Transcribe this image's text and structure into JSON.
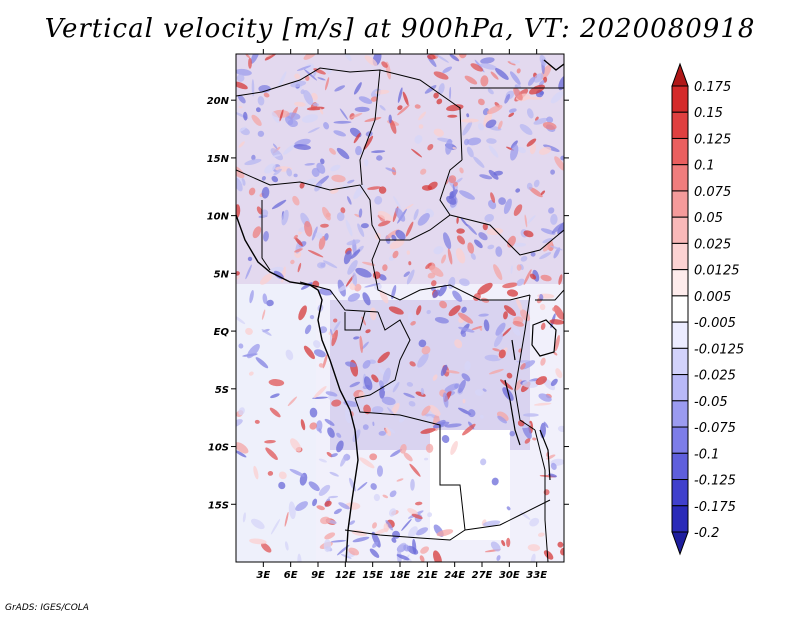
{
  "title": "Vertical velocity [m/s] at 900hPa, VT: 2020080918",
  "footer": "GrADS: IGES/COLA",
  "map": {
    "lon_range": [
      0,
      36
    ],
    "lat_range": [
      -20,
      24
    ],
    "lat_ticks": [
      {
        "value": 20,
        "label": "20N"
      },
      {
        "value": 15,
        "label": "15N"
      },
      {
        "value": 10,
        "label": "10N"
      },
      {
        "value": 5,
        "label": "5N"
      },
      {
        "value": 0,
        "label": "EQ"
      },
      {
        "value": -5,
        "label": "5S"
      },
      {
        "value": -10,
        "label": "10S"
      },
      {
        "value": -15,
        "label": "15S"
      }
    ],
    "lon_ticks": [
      {
        "value": 3,
        "label": "3E"
      },
      {
        "value": 6,
        "label": "6E"
      },
      {
        "value": 9,
        "label": "9E"
      },
      {
        "value": 12,
        "label": "12E"
      },
      {
        "value": 15,
        "label": "15E"
      },
      {
        "value": 18,
        "label": "18E"
      },
      {
        "value": 21,
        "label": "21E"
      },
      {
        "value": 24,
        "label": "24E"
      },
      {
        "value": 27,
        "label": "27E"
      },
      {
        "value": 30,
        "label": "30E"
      },
      {
        "value": 33,
        "label": "33E"
      }
    ]
  },
  "colorbar": {
    "levels": [
      {
        "label": "0.175",
        "color": "#c4161c"
      },
      {
        "label": "0.15",
        "color": "#d42a2a"
      },
      {
        "label": "0.125",
        "color": "#e04040"
      },
      {
        "label": "0.1",
        "color": "#ea5f5f"
      },
      {
        "label": "0.075",
        "color": "#f07d7d"
      },
      {
        "label": "0.05",
        "color": "#f59b9b"
      },
      {
        "label": "0.025",
        "color": "#f9b9b9"
      },
      {
        "label": "0.0125",
        "color": "#fcd3d3"
      },
      {
        "label": "0.005",
        "color": "#feecec"
      },
      {
        "label": "-0.005",
        "color": "#ffffff"
      },
      {
        "label": "-0.0125",
        "color": "#ececff"
      },
      {
        "label": "-0.025",
        "color": "#d3d3fb"
      },
      {
        "label": "-0.05",
        "color": "#b9b9f7"
      },
      {
        "label": "-0.075",
        "color": "#9b9bf0"
      },
      {
        "label": "-0.1",
        "color": "#7d7de8"
      },
      {
        "label": "-0.125",
        "color": "#5f5fdc"
      },
      {
        "label": "-0.175",
        "color": "#4040cc"
      },
      {
        "label": "-0.2",
        "color": "#2a2ab8"
      }
    ],
    "top_color": "#b01818",
    "bottom_color": "#1e1e9e"
  }
}
